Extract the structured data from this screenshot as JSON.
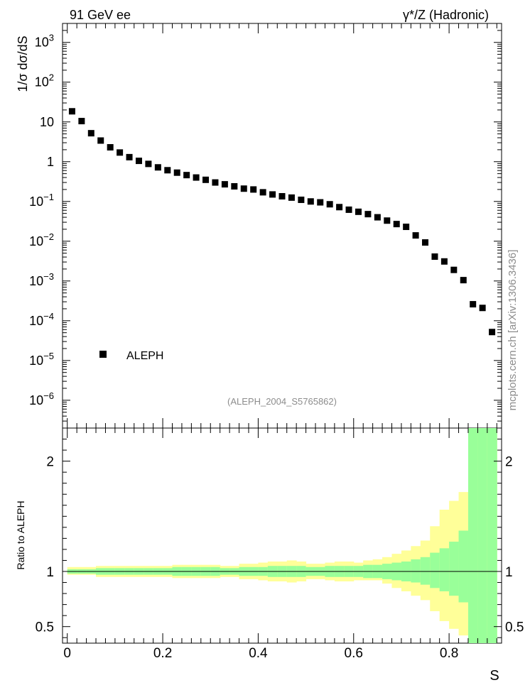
{
  "header": {
    "left": "91 GeV ee",
    "right": "γ*/Z (Hadronic)"
  },
  "watermark": "mcplots.cern.ch [arXiv:1306.3436]",
  "analysis_id": "(ALEPH_2004_S5765862)",
  "legend": {
    "label": "ALEPH"
  },
  "axes": {
    "top_ylabel": "1/σ  dσ/dS",
    "bottom_ylabel": "Ratio to ALEPH",
    "xlabel": "S"
  },
  "colors": {
    "marker": "#000000",
    "band_inner": "#99ff99",
    "band_outer": "#ffff99",
    "ref_line": "#000000"
  },
  "chart_data": [
    {
      "type": "scatter",
      "yscale": "log",
      "xlim": [
        -0.01,
        0.91
      ],
      "ylim": [
        2e-07,
        3000
      ],
      "ytick_labels": [
        "10^-6",
        "10^-5",
        "10^-4",
        "10^-3",
        "10^-2",
        "10^-1",
        "1",
        "10",
        "10^2",
        "10^3"
      ],
      "series": [
        {
          "name": "ALEPH",
          "x": [
            0.01,
            0.03,
            0.05,
            0.07,
            0.09,
            0.11,
            0.13,
            0.15,
            0.17,
            0.19,
            0.21,
            0.23,
            0.25,
            0.27,
            0.29,
            0.31,
            0.33,
            0.35,
            0.37,
            0.39,
            0.41,
            0.43,
            0.45,
            0.47,
            0.49,
            0.51,
            0.53,
            0.55,
            0.57,
            0.59,
            0.61,
            0.63,
            0.65,
            0.67,
            0.69,
            0.71,
            0.73,
            0.75,
            0.77,
            0.79,
            0.81,
            0.83,
            0.85,
            0.87,
            0.89
          ],
          "y": [
            18.5,
            10.5,
            5.2,
            3.4,
            2.3,
            1.7,
            1.3,
            1.05,
            0.88,
            0.72,
            0.61,
            0.53,
            0.46,
            0.4,
            0.35,
            0.3,
            0.27,
            0.24,
            0.21,
            0.2,
            0.17,
            0.15,
            0.135,
            0.125,
            0.11,
            0.1,
            0.095,
            0.085,
            0.072,
            0.062,
            0.055,
            0.048,
            0.04,
            0.033,
            0.027,
            0.023,
            0.014,
            0.0093,
            0.0041,
            0.0031,
            0.0019,
            0.00105,
            0.00026,
            0.00021,
            5.2e-05
          ]
        }
      ]
    },
    {
      "type": "area",
      "xlim": [
        -0.01,
        0.91
      ],
      "ylim": [
        0.35,
        2.3
      ],
      "yticks": [
        0.5,
        1,
        2
      ],
      "xticks": [
        0,
        0.2,
        0.4,
        0.6,
        0.8
      ],
      "reference_line": 1,
      "bin_edges": [
        0,
        0.02,
        0.04,
        0.06,
        0.08,
        0.1,
        0.12,
        0.14,
        0.16,
        0.18,
        0.2,
        0.22,
        0.24,
        0.26,
        0.28,
        0.3,
        0.32,
        0.34,
        0.36,
        0.38,
        0.4,
        0.42,
        0.44,
        0.46,
        0.48,
        0.5,
        0.52,
        0.54,
        0.56,
        0.58,
        0.6,
        0.62,
        0.64,
        0.66,
        0.68,
        0.7,
        0.72,
        0.74,
        0.76,
        0.78,
        0.8,
        0.82,
        0.84,
        0.86,
        0.88,
        0.9
      ],
      "inner_band": {
        "low": [
          0.98,
          0.98,
          0.98,
          0.97,
          0.97,
          0.97,
          0.97,
          0.97,
          0.97,
          0.97,
          0.97,
          0.96,
          0.96,
          0.96,
          0.96,
          0.96,
          0.97,
          0.97,
          0.96,
          0.96,
          0.96,
          0.95,
          0.95,
          0.95,
          0.95,
          0.96,
          0.96,
          0.95,
          0.95,
          0.95,
          0.95,
          0.94,
          0.94,
          0.93,
          0.92,
          0.91,
          0.9,
          0.88,
          0.85,
          0.82,
          0.78,
          0.72,
          0.1,
          0.1,
          0.1
        ],
        "high": [
          1.02,
          1.02,
          1.02,
          1.03,
          1.03,
          1.03,
          1.03,
          1.03,
          1.03,
          1.03,
          1.03,
          1.04,
          1.04,
          1.04,
          1.04,
          1.04,
          1.03,
          1.03,
          1.04,
          1.04,
          1.04,
          1.05,
          1.05,
          1.05,
          1.05,
          1.04,
          1.04,
          1.05,
          1.05,
          1.05,
          1.05,
          1.06,
          1.06,
          1.07,
          1.08,
          1.09,
          1.11,
          1.13,
          1.17,
          1.21,
          1.27,
          1.37,
          2.5,
          2.5,
          2.5
        ]
      },
      "outer_band": {
        "low": [
          0.97,
          0.97,
          0.97,
          0.95,
          0.95,
          0.95,
          0.95,
          0.95,
          0.95,
          0.95,
          0.95,
          0.94,
          0.94,
          0.94,
          0.94,
          0.94,
          0.95,
          0.95,
          0.93,
          0.93,
          0.92,
          0.91,
          0.91,
          0.9,
          0.91,
          0.93,
          0.93,
          0.92,
          0.91,
          0.91,
          0.92,
          0.92,
          0.92,
          0.89,
          0.85,
          0.82,
          0.78,
          0.74,
          0.64,
          0.55,
          0.48,
          0.42,
          0.1,
          0.1,
          0.1
        ],
        "high": [
          1.04,
          1.04,
          1.04,
          1.05,
          1.05,
          1.05,
          1.05,
          1.05,
          1.05,
          1.05,
          1.05,
          1.06,
          1.06,
          1.06,
          1.06,
          1.06,
          1.05,
          1.05,
          1.07,
          1.07,
          1.08,
          1.09,
          1.09,
          1.1,
          1.09,
          1.07,
          1.07,
          1.08,
          1.09,
          1.09,
          1.08,
          1.1,
          1.11,
          1.13,
          1.16,
          1.19,
          1.23,
          1.28,
          1.41,
          1.56,
          1.64,
          1.72,
          2.5,
          2.5,
          2.5
        ]
      }
    }
  ]
}
